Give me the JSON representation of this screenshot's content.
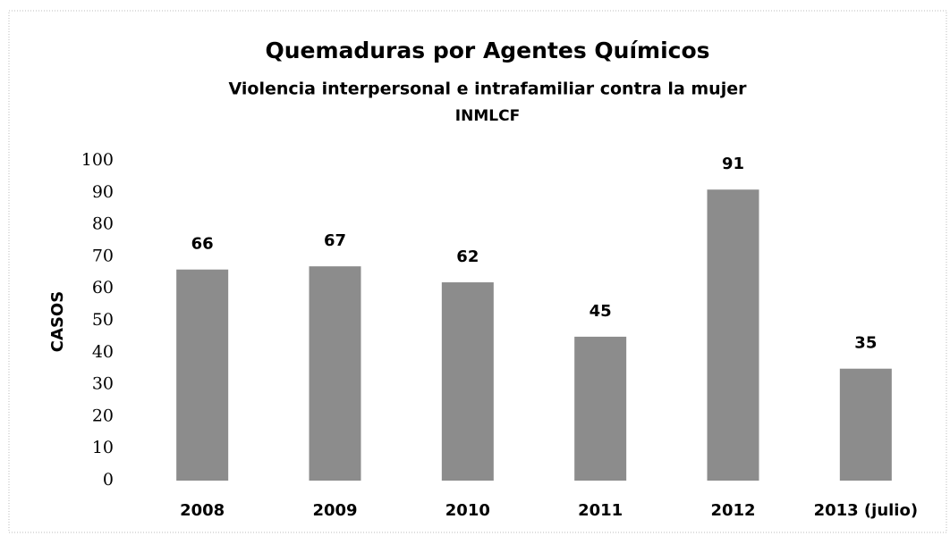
{
  "chart_data": {
    "type": "bar",
    "title": "Quemaduras por Agentes Químicos",
    "subtitle": [
      "Violencia interpersonal e intrafamiliar contra la mujer",
      "INMLCF"
    ],
    "ylabel": "CASOS",
    "categories": [
      "2008",
      "2009",
      "2010",
      "2011",
      "2012",
      "2013 (julio)"
    ],
    "values": [
      66,
      67,
      62,
      45,
      91,
      35
    ],
    "color": "#8c8c8c",
    "ylim": [
      0,
      100
    ],
    "yticks": [
      0,
      10,
      20,
      30,
      40,
      50,
      60,
      70,
      80,
      90,
      100
    ],
    "grid": false
  }
}
